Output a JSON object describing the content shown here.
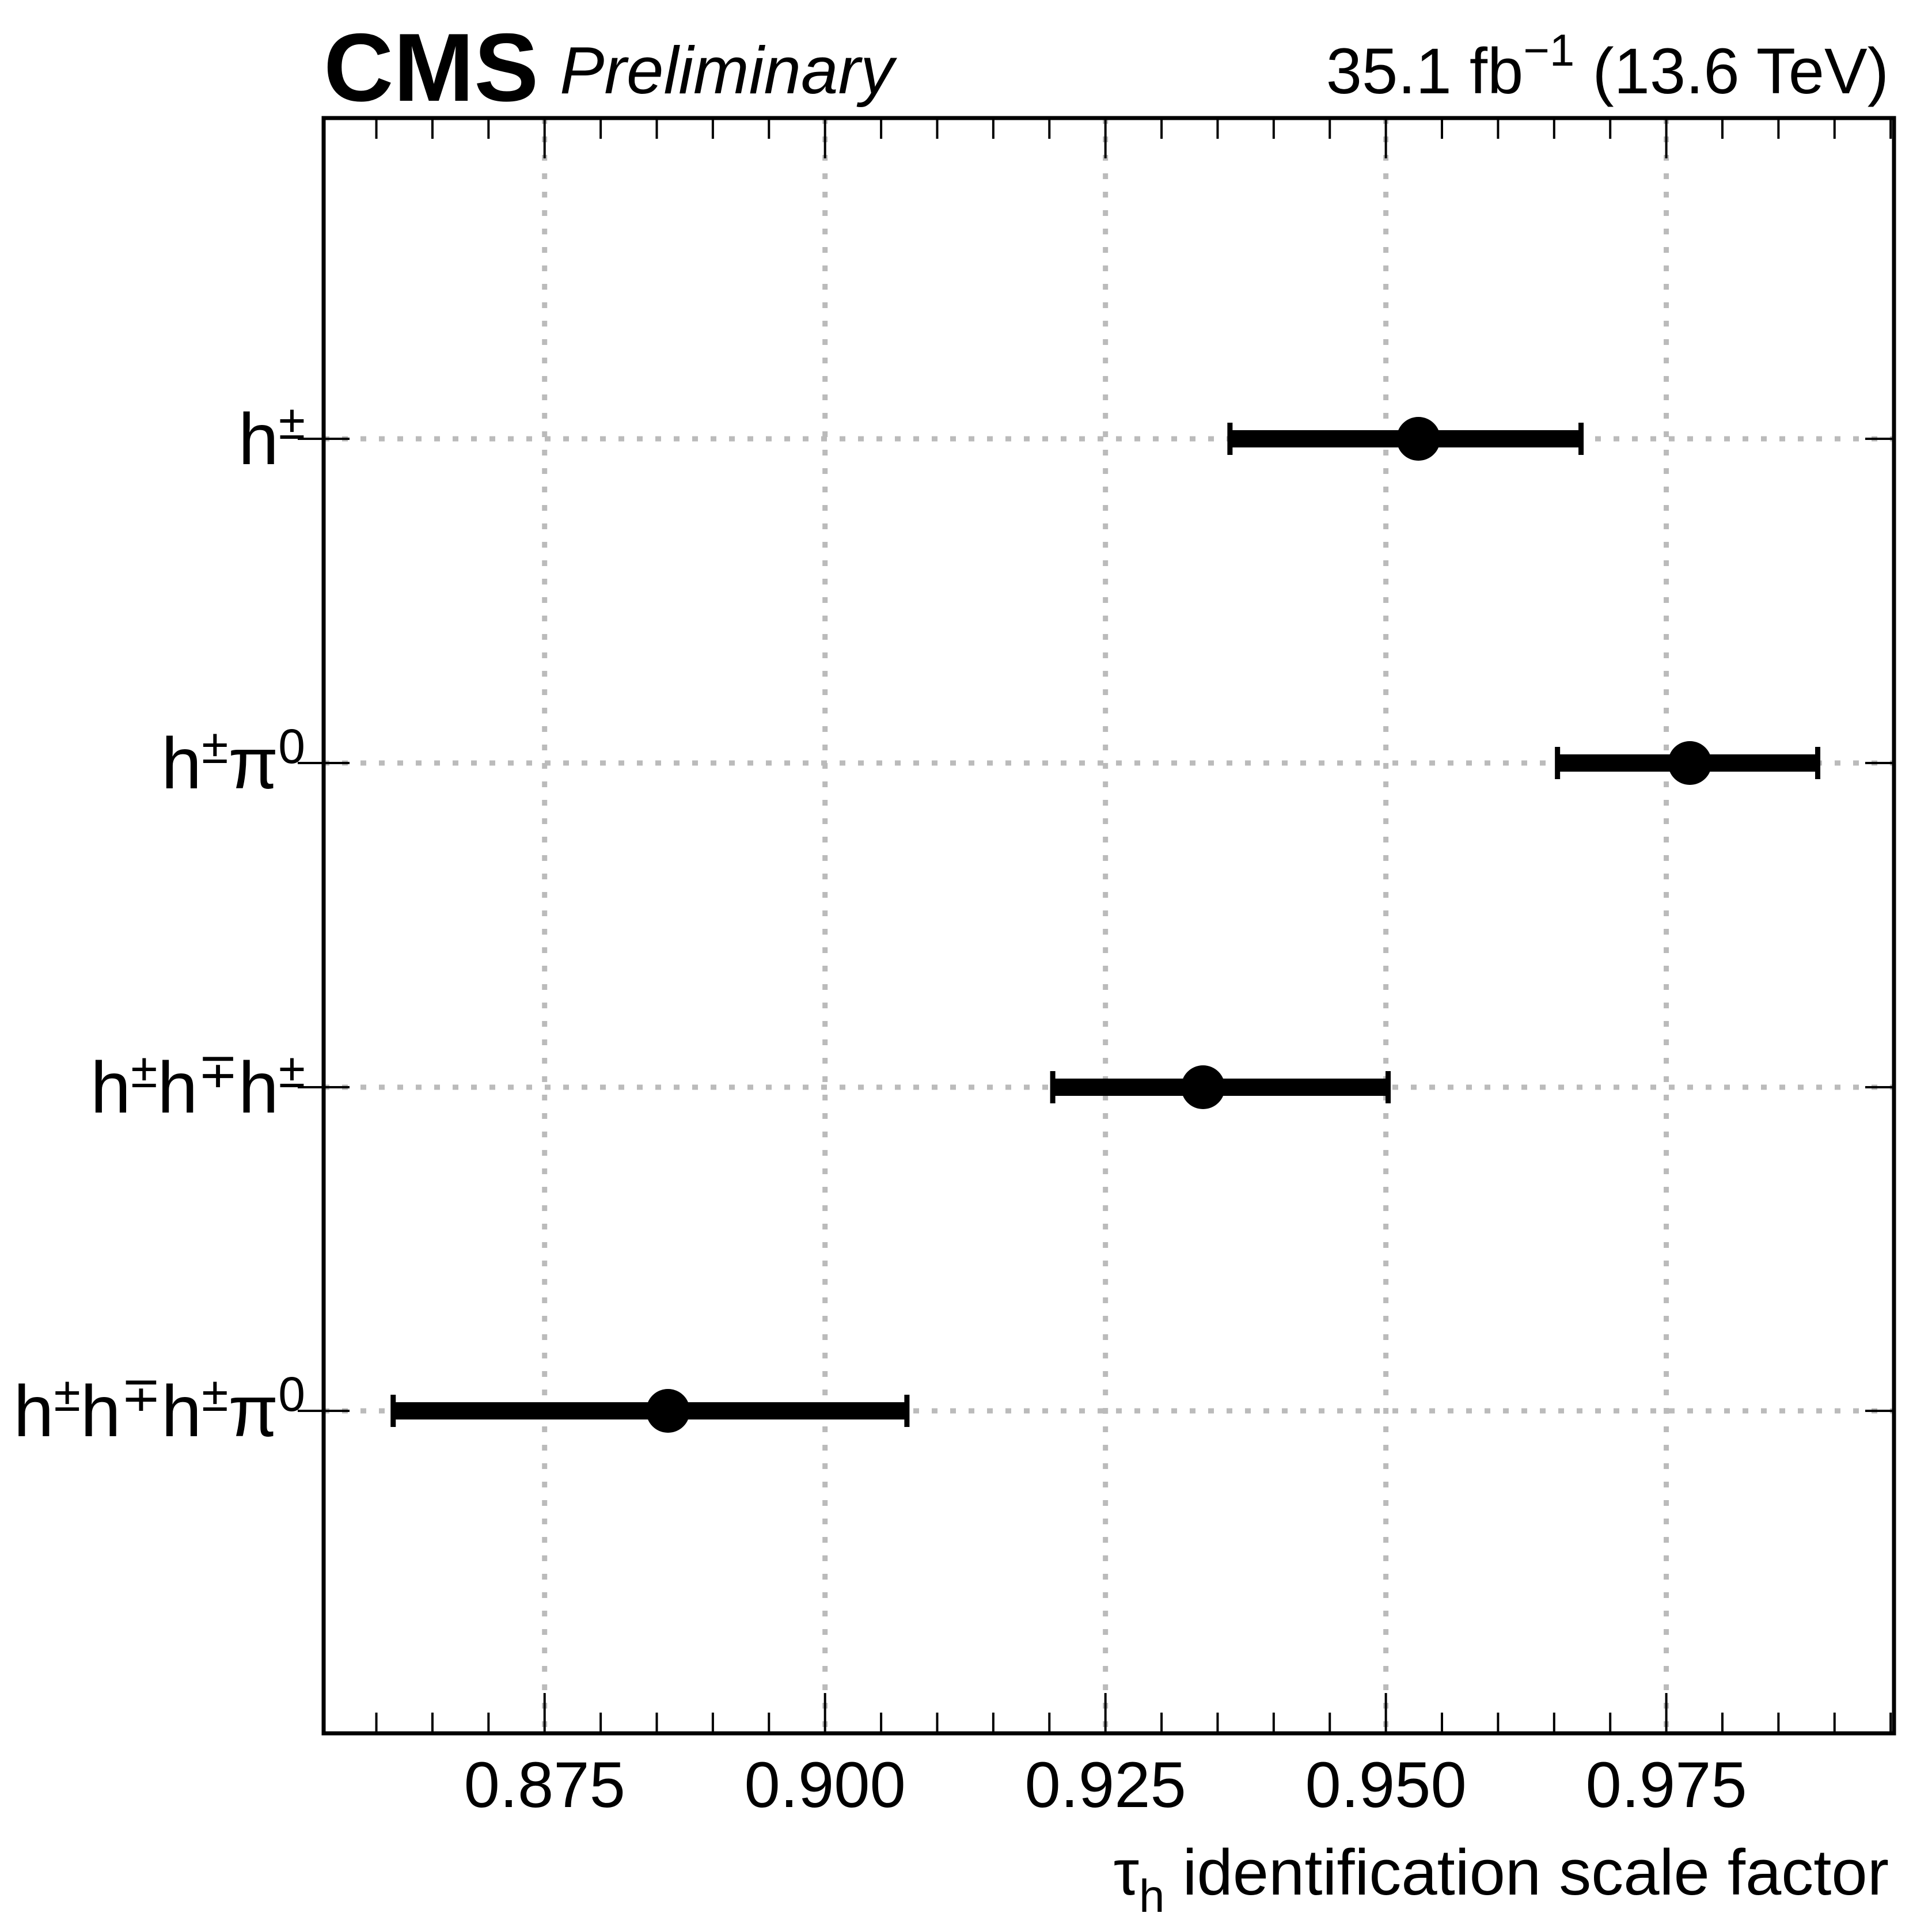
{
  "header": {
    "experiment": "CMS",
    "status": "Preliminary",
    "lumi_value": "35.1 fb",
    "lumi_exponent": "−1",
    "energy": " (13.6 TeV)"
  },
  "axis_title": {
    "symbol": "τ",
    "subscript": "h",
    "text": " identification scale factor"
  },
  "chart_data": {
    "type": "scatter",
    "orientation": "horizontal",
    "xlabel": "τh identification scale factor",
    "xlim": [
      0.8553,
      0.9953
    ],
    "x_ticks": [
      "0.875",
      "0.900",
      "0.925",
      "0.950",
      "0.975"
    ],
    "x_tick_values": [
      0.875,
      0.9,
      0.925,
      0.95,
      0.975
    ],
    "x_minor_step": 0.005,
    "grid": true,
    "categories": [
      {
        "name": "h",
        "sup": "±"
      },
      {
        "name": "h",
        "sup": "±",
        "name2": "π",
        "sup2": "0"
      },
      {
        "name": "h",
        "sup": "±",
        "name2": "h",
        "sup2": "∓",
        "name3": "h",
        "sup3": "±"
      },
      {
        "name": "h",
        "sup": "±",
        "name2": "h",
        "sup2": "∓",
        "name3": "h",
        "sup3": "±",
        "name4": "π",
        "sup4": "0"
      }
    ],
    "points": [
      {
        "category": "h±",
        "value": 0.9529,
        "err_low": 0.9361,
        "err_high": 0.9674
      },
      {
        "category": "h±π0",
        "value": 0.9771,
        "err_low": 0.9653,
        "err_high": 0.9885
      },
      {
        "category": "h±h∓h±",
        "value": 0.9337,
        "err_low": 0.9203,
        "err_high": 0.9502
      },
      {
        "category": "h±h∓h±π0",
        "value": 0.886,
        "err_low": 0.8615,
        "err_high": 0.9073
      }
    ]
  }
}
